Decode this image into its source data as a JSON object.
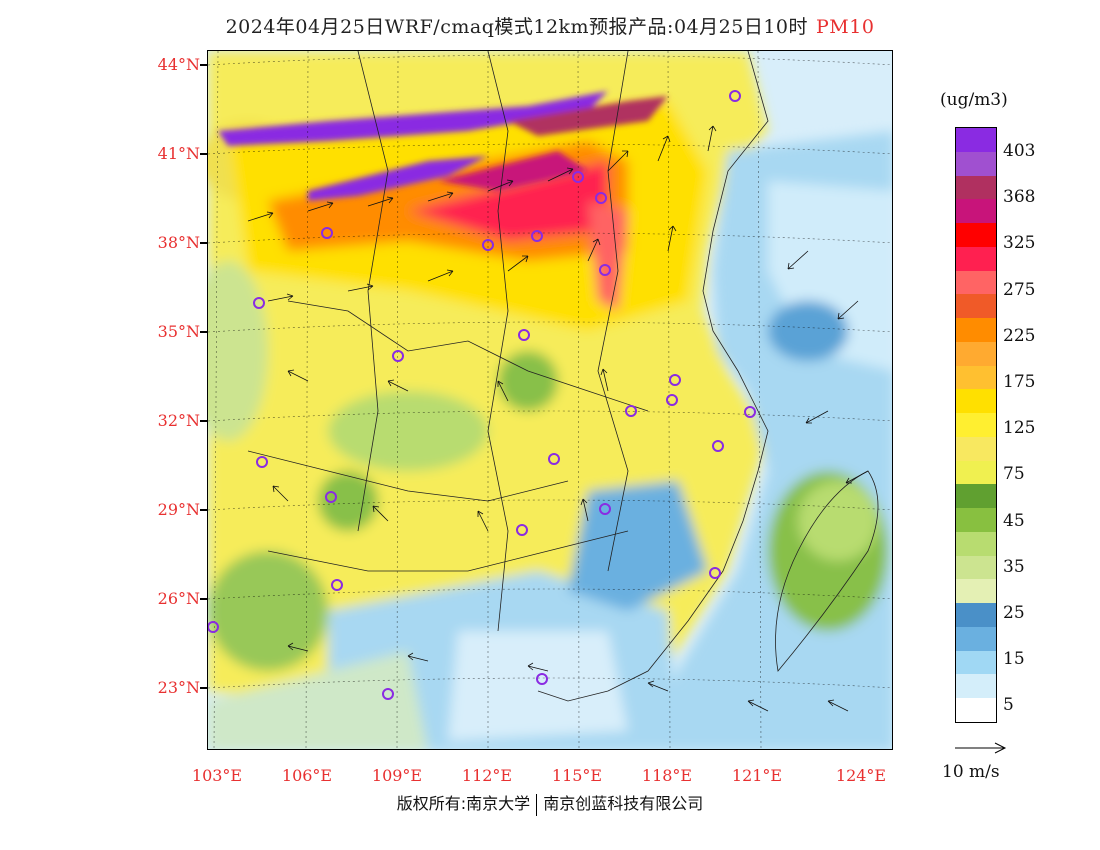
{
  "title": {
    "main": "2024年04月25日WRF/cmaq模式12km预报产品:04月25日10时",
    "pollutant": "PM10"
  },
  "axes": {
    "lat_labels": [
      "44°N",
      "41°N",
      "38°N",
      "35°N",
      "32°N",
      "29°N",
      "26°N",
      "23°N"
    ],
    "lon_labels": [
      "103°E",
      "106°E",
      "109°E",
      "112°E",
      "115°E",
      "118°E",
      "121°E",
      "124°E"
    ]
  },
  "legend": {
    "unit": "(ug/m3)",
    "labels": [
      "403",
      "368",
      "325",
      "275",
      "225",
      "175",
      "125",
      "75",
      "45",
      "35",
      "25",
      "15",
      "5"
    ],
    "colors": [
      "#8a2be2",
      "#a050d0",
      "#b03060",
      "#c8147a",
      "#ff0000",
      "#ff2050",
      "#ff6464",
      "#f05a28",
      "#ff8c00",
      "#ffaa30",
      "#ffc030",
      "#ffe000",
      "#ffef30",
      "#f8e860",
      "#f0f050",
      "#60a030",
      "#88c040",
      "#b8dc70",
      "#cce490",
      "#e4f0b4",
      "#4a90c8",
      "#6ab0e0",
      "#a0d8f4",
      "#d4eefa",
      "#ffffff"
    ],
    "wind_label": "10 m/s"
  },
  "footer": {
    "left": "版权所有:南京大学",
    "right": "南京创蓝科技有限公司"
  }
}
